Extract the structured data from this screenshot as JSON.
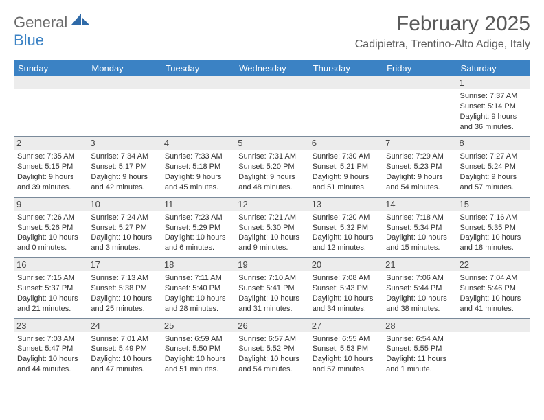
{
  "logo": {
    "text1": "General",
    "text2": "Blue"
  },
  "title": "February 2025",
  "location": "Cadipietra, Trentino-Alto Adige, Italy",
  "colors": {
    "header_bg": "#3b82c4",
    "header_text": "#ffffff",
    "daynum_bg": "#ececec",
    "border": "#7a8a9a",
    "body_text": "#333333",
    "title_text": "#5a5a5a"
  },
  "layout": {
    "columns": 7,
    "font_family": "Arial",
    "title_fontsize": 30,
    "location_fontsize": 16,
    "header_fontsize": 13,
    "daynum_fontsize": 13,
    "info_fontsize": 11
  },
  "day_headers": [
    "Sunday",
    "Monday",
    "Tuesday",
    "Wednesday",
    "Thursday",
    "Friday",
    "Saturday"
  ],
  "weeks": [
    [
      {
        "n": "",
        "sr": "",
        "ss": "",
        "dl": ""
      },
      {
        "n": "",
        "sr": "",
        "ss": "",
        "dl": ""
      },
      {
        "n": "",
        "sr": "",
        "ss": "",
        "dl": ""
      },
      {
        "n": "",
        "sr": "",
        "ss": "",
        "dl": ""
      },
      {
        "n": "",
        "sr": "",
        "ss": "",
        "dl": ""
      },
      {
        "n": "",
        "sr": "",
        "ss": "",
        "dl": ""
      },
      {
        "n": "1",
        "sr": "Sunrise: 7:37 AM",
        "ss": "Sunset: 5:14 PM",
        "dl": "Daylight: 9 hours and 36 minutes."
      }
    ],
    [
      {
        "n": "2",
        "sr": "Sunrise: 7:35 AM",
        "ss": "Sunset: 5:15 PM",
        "dl": "Daylight: 9 hours and 39 minutes."
      },
      {
        "n": "3",
        "sr": "Sunrise: 7:34 AM",
        "ss": "Sunset: 5:17 PM",
        "dl": "Daylight: 9 hours and 42 minutes."
      },
      {
        "n": "4",
        "sr": "Sunrise: 7:33 AM",
        "ss": "Sunset: 5:18 PM",
        "dl": "Daylight: 9 hours and 45 minutes."
      },
      {
        "n": "5",
        "sr": "Sunrise: 7:31 AM",
        "ss": "Sunset: 5:20 PM",
        "dl": "Daylight: 9 hours and 48 minutes."
      },
      {
        "n": "6",
        "sr": "Sunrise: 7:30 AM",
        "ss": "Sunset: 5:21 PM",
        "dl": "Daylight: 9 hours and 51 minutes."
      },
      {
        "n": "7",
        "sr": "Sunrise: 7:29 AM",
        "ss": "Sunset: 5:23 PM",
        "dl": "Daylight: 9 hours and 54 minutes."
      },
      {
        "n": "8",
        "sr": "Sunrise: 7:27 AM",
        "ss": "Sunset: 5:24 PM",
        "dl": "Daylight: 9 hours and 57 minutes."
      }
    ],
    [
      {
        "n": "9",
        "sr": "Sunrise: 7:26 AM",
        "ss": "Sunset: 5:26 PM",
        "dl": "Daylight: 10 hours and 0 minutes."
      },
      {
        "n": "10",
        "sr": "Sunrise: 7:24 AM",
        "ss": "Sunset: 5:27 PM",
        "dl": "Daylight: 10 hours and 3 minutes."
      },
      {
        "n": "11",
        "sr": "Sunrise: 7:23 AM",
        "ss": "Sunset: 5:29 PM",
        "dl": "Daylight: 10 hours and 6 minutes."
      },
      {
        "n": "12",
        "sr": "Sunrise: 7:21 AM",
        "ss": "Sunset: 5:30 PM",
        "dl": "Daylight: 10 hours and 9 minutes."
      },
      {
        "n": "13",
        "sr": "Sunrise: 7:20 AM",
        "ss": "Sunset: 5:32 PM",
        "dl": "Daylight: 10 hours and 12 minutes."
      },
      {
        "n": "14",
        "sr": "Sunrise: 7:18 AM",
        "ss": "Sunset: 5:34 PM",
        "dl": "Daylight: 10 hours and 15 minutes."
      },
      {
        "n": "15",
        "sr": "Sunrise: 7:16 AM",
        "ss": "Sunset: 5:35 PM",
        "dl": "Daylight: 10 hours and 18 minutes."
      }
    ],
    [
      {
        "n": "16",
        "sr": "Sunrise: 7:15 AM",
        "ss": "Sunset: 5:37 PM",
        "dl": "Daylight: 10 hours and 21 minutes."
      },
      {
        "n": "17",
        "sr": "Sunrise: 7:13 AM",
        "ss": "Sunset: 5:38 PM",
        "dl": "Daylight: 10 hours and 25 minutes."
      },
      {
        "n": "18",
        "sr": "Sunrise: 7:11 AM",
        "ss": "Sunset: 5:40 PM",
        "dl": "Daylight: 10 hours and 28 minutes."
      },
      {
        "n": "19",
        "sr": "Sunrise: 7:10 AM",
        "ss": "Sunset: 5:41 PM",
        "dl": "Daylight: 10 hours and 31 minutes."
      },
      {
        "n": "20",
        "sr": "Sunrise: 7:08 AM",
        "ss": "Sunset: 5:43 PM",
        "dl": "Daylight: 10 hours and 34 minutes."
      },
      {
        "n": "21",
        "sr": "Sunrise: 7:06 AM",
        "ss": "Sunset: 5:44 PM",
        "dl": "Daylight: 10 hours and 38 minutes."
      },
      {
        "n": "22",
        "sr": "Sunrise: 7:04 AM",
        "ss": "Sunset: 5:46 PM",
        "dl": "Daylight: 10 hours and 41 minutes."
      }
    ],
    [
      {
        "n": "23",
        "sr": "Sunrise: 7:03 AM",
        "ss": "Sunset: 5:47 PM",
        "dl": "Daylight: 10 hours and 44 minutes."
      },
      {
        "n": "24",
        "sr": "Sunrise: 7:01 AM",
        "ss": "Sunset: 5:49 PM",
        "dl": "Daylight: 10 hours and 47 minutes."
      },
      {
        "n": "25",
        "sr": "Sunrise: 6:59 AM",
        "ss": "Sunset: 5:50 PM",
        "dl": "Daylight: 10 hours and 51 minutes."
      },
      {
        "n": "26",
        "sr": "Sunrise: 6:57 AM",
        "ss": "Sunset: 5:52 PM",
        "dl": "Daylight: 10 hours and 54 minutes."
      },
      {
        "n": "27",
        "sr": "Sunrise: 6:55 AM",
        "ss": "Sunset: 5:53 PM",
        "dl": "Daylight: 10 hours and 57 minutes."
      },
      {
        "n": "28",
        "sr": "Sunrise: 6:54 AM",
        "ss": "Sunset: 5:55 PM",
        "dl": "Daylight: 11 hours and 1 minute."
      },
      {
        "n": "",
        "sr": "",
        "ss": "",
        "dl": ""
      }
    ]
  ]
}
